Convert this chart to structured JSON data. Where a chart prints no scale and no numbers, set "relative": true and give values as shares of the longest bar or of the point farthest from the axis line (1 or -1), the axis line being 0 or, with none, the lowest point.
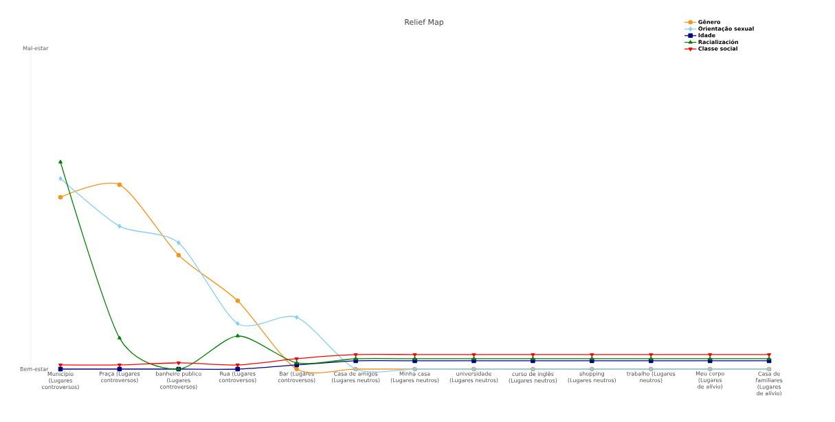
{
  "chart_data": {
    "type": "line",
    "title": "Relief Map",
    "relative": true,
    "legend": "top right",
    "grid": false,
    "annotations": [
      "Mal-estar",
      "Bem-estar"
    ],
    "categories": [
      "Município (Lugares controversos)",
      "Praça (Lugares controversos)",
      "banheiro publico (Lugares controversos)",
      "Rua (Lugares controversos)",
      "Bar (Lugares controversos)",
      "Casa de amigos (Lugares neutros)",
      "Minha casa (Lugares neutros)",
      "universidade (Lugares neutros)",
      "curso de inglês (Lugares neutros)",
      "shopping (Lugares neutros)",
      "trabalho (Lugares neutros)",
      "Meu corpo (Lugares de alívio)",
      "Casa de familiares (Lugares de alívio)"
    ],
    "series": [
      {
        "name": "Gênero",
        "color": "#f7941d",
        "marker": "circle",
        "values": [
          0.83,
          0.89,
          0.55,
          0.33,
          0,
          0,
          0,
          0,
          0,
          0,
          0,
          0,
          0
        ]
      },
      {
        "name": "Orientação sexual",
        "color": "#87cefa",
        "marker": "diamond",
        "values": [
          0.92,
          0.69,
          0.61,
          0.22,
          0.25,
          0,
          0,
          0,
          0,
          0,
          0,
          0,
          0
        ]
      },
      {
        "name": "Idade",
        "color": "#000080",
        "marker": "square",
        "values": [
          0,
          0,
          0,
          0,
          0.02,
          0.04,
          0.04,
          0.04,
          0.04,
          0.04,
          0.04,
          0.04,
          0.04
        ]
      },
      {
        "name": "Racialización",
        "color": "#008000",
        "marker": "triangle",
        "values": [
          1,
          0.15,
          0,
          0.16,
          0.03,
          0.05,
          0.05,
          0.05,
          0.05,
          0.05,
          0.05,
          0.05,
          0.05
        ]
      },
      {
        "name": "Classe social",
        "color": "#ff0000",
        "marker": "triangle-down",
        "values": [
          0.02,
          0.02,
          0.03,
          0.02,
          0.05,
          0.07,
          0.07,
          0.07,
          0.07,
          0.07,
          0.07,
          0.07,
          0.07
        ]
      }
    ]
  }
}
